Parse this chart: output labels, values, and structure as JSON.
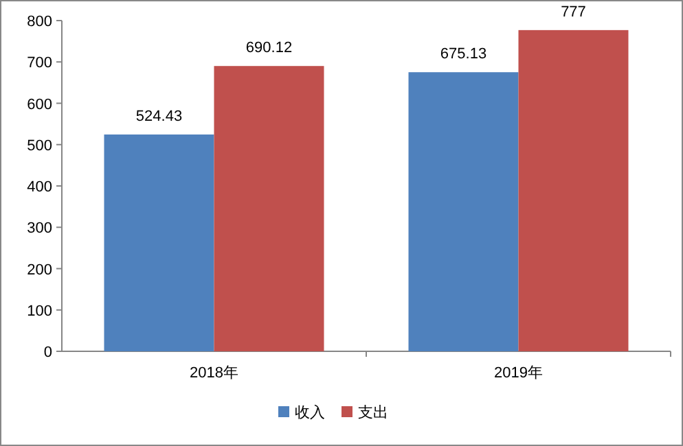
{
  "chart_data": {
    "type": "bar",
    "categories": [
      "2018年",
      "2019年"
    ],
    "series": [
      {
        "name": "收入",
        "color": "#4f81bd",
        "values": [
          524.43,
          675.13
        ]
      },
      {
        "name": "支出",
        "color": "#c0504d",
        "values": [
          690.12,
          777
        ]
      }
    ],
    "ylim": [
      0,
      800
    ],
    "yticks": [
      0,
      100,
      200,
      300,
      400,
      500,
      600,
      700,
      800
    ],
    "data_labels": true,
    "legend": "bottom",
    "grid": false
  }
}
